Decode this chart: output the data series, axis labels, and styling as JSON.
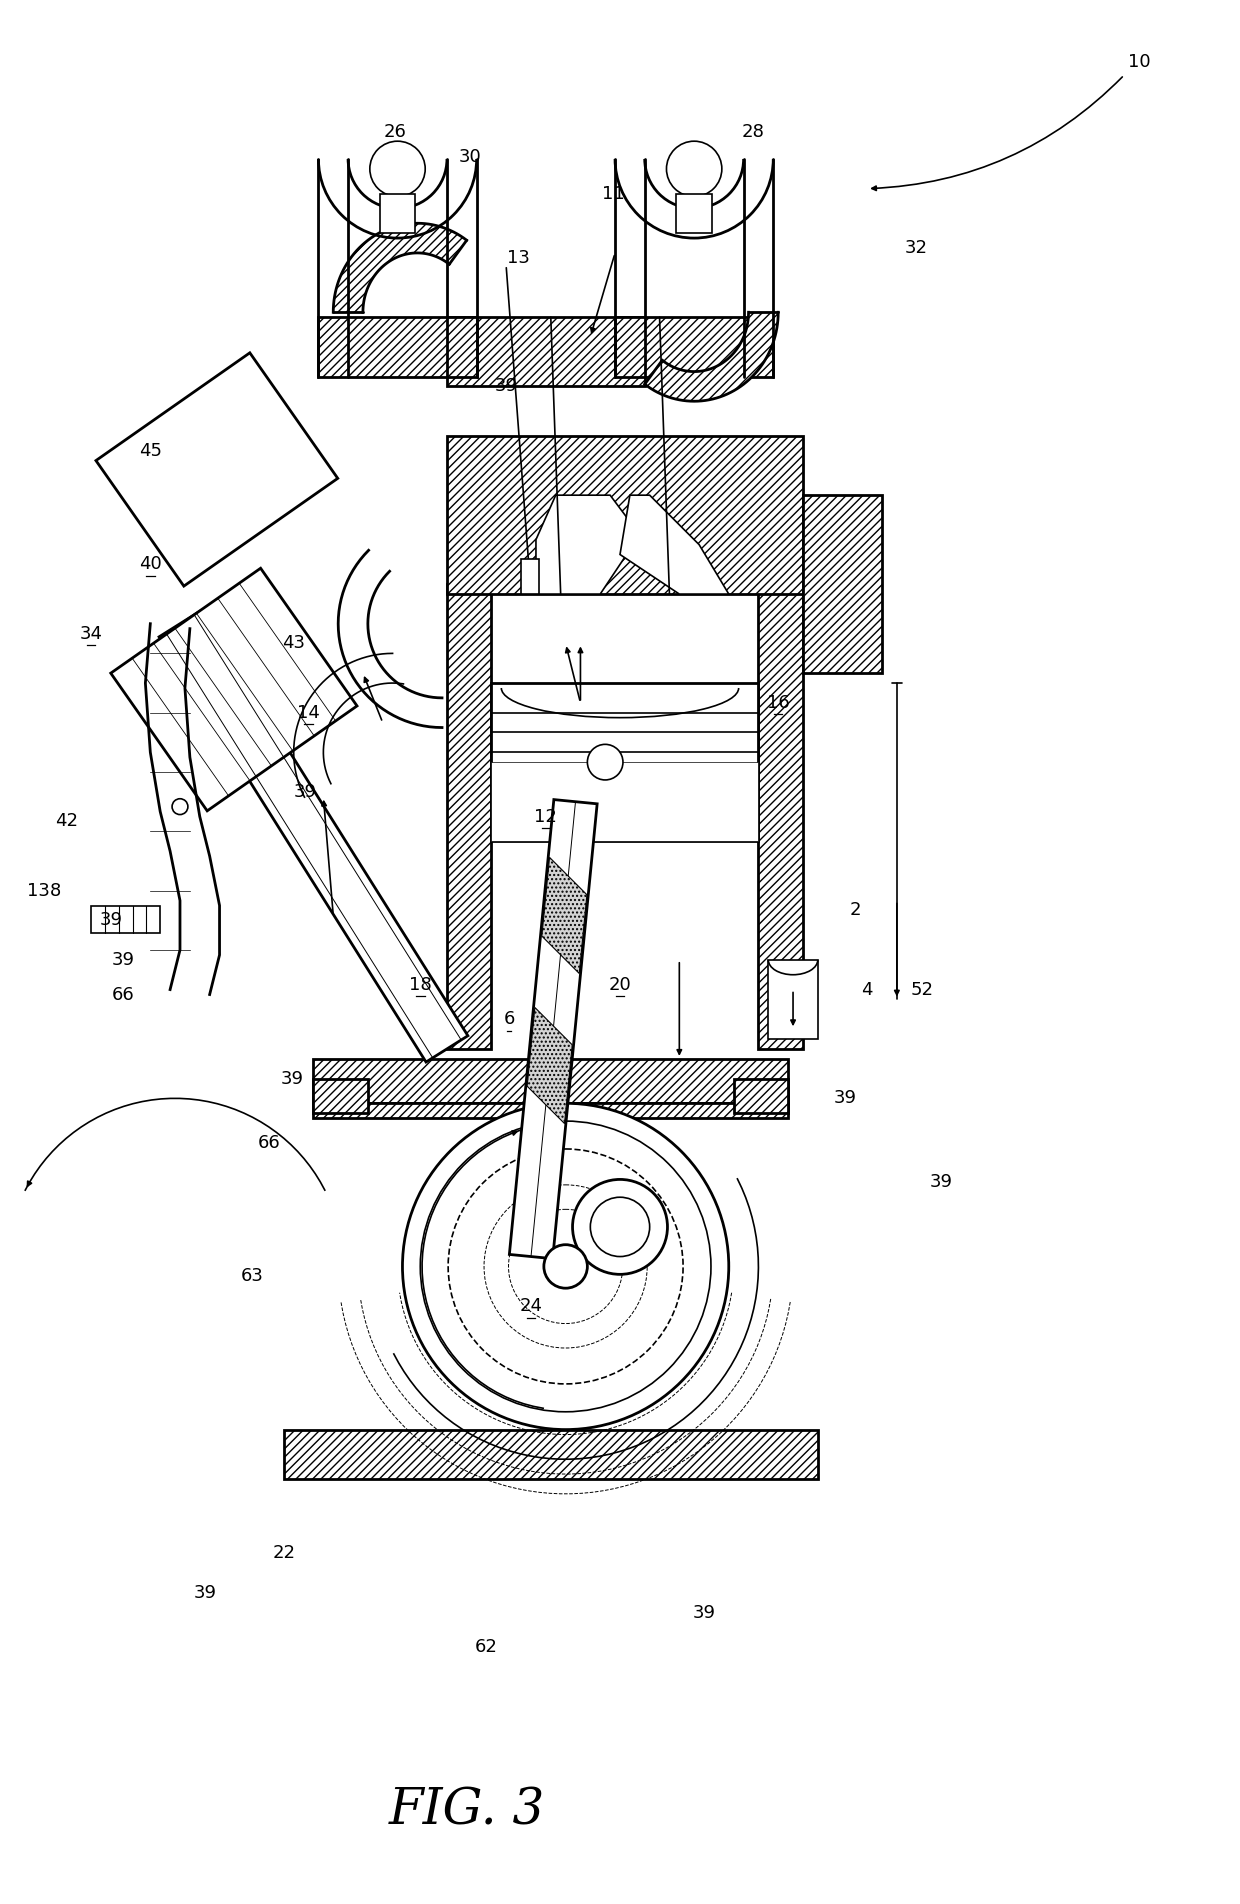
{
  "title": "FIG. 3",
  "bg_color": "#ffffff",
  "line_color": "#000000",
  "fig_width": 12.4,
  "fig_height": 19.04
}
